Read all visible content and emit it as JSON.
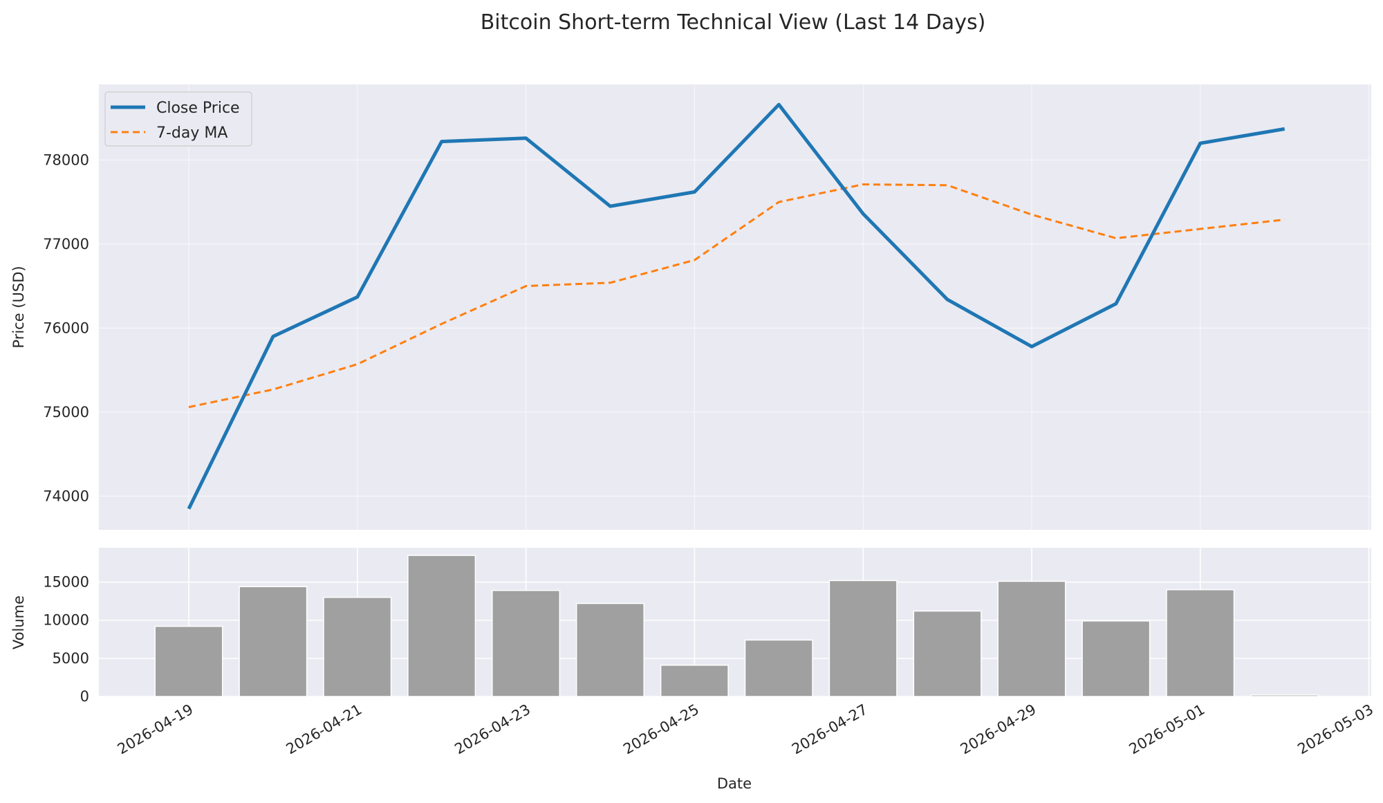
{
  "chart_data": {
    "type": "line",
    "title": "Bitcoin Short-term Technical View (Last 14 Days)",
    "dates": [
      "2026-04-19",
      "2026-04-20",
      "2026-04-21",
      "2026-04-22",
      "2026-04-23",
      "2026-04-24",
      "2026-04-25",
      "2026-04-26",
      "2026-04-27",
      "2026-04-28",
      "2026-04-29",
      "2026-04-30",
      "2026-05-01",
      "2026-05-02"
    ],
    "x_tick_labels": [
      "2026-04-19",
      "2026-04-21",
      "2026-04-23",
      "2026-04-25",
      "2026-04-27",
      "2026-04-29",
      "2026-05-01",
      "2026-05-03"
    ],
    "xlabel": "Date",
    "price_panel": {
      "ylabel": "Price (USD)",
      "ylim": [
        73600,
        78900
      ],
      "yticks": [
        74000,
        75000,
        76000,
        77000,
        78000
      ],
      "legend_position": "top-left",
      "grid": true,
      "series": [
        {
          "name": "Close Price",
          "style": "solid",
          "color": "#1f77b4",
          "values": [
            73850,
            75900,
            76370,
            78220,
            78260,
            77450,
            77620,
            78660,
            77360,
            76340,
            75780,
            76290,
            78200,
            78370
          ]
        },
        {
          "name": "7-day MA",
          "style": "dashed",
          "color": "#ff7f0e",
          "values": [
            75060,
            75270,
            75570,
            76050,
            76500,
            76540,
            76810,
            77500,
            77710,
            77700,
            77350,
            77070,
            77180,
            77290
          ]
        }
      ]
    },
    "volume_panel": {
      "type": "bar",
      "ylabel": "Volume",
      "ylim": [
        0,
        19500
      ],
      "yticks": [
        0,
        5000,
        10000,
        15000
      ],
      "color": "#a0a0a0",
      "values": [
        9200,
        14400,
        13000,
        18500,
        13900,
        12200,
        4100,
        7400,
        15200,
        11200,
        15100,
        9900,
        14000,
        200
      ]
    }
  }
}
